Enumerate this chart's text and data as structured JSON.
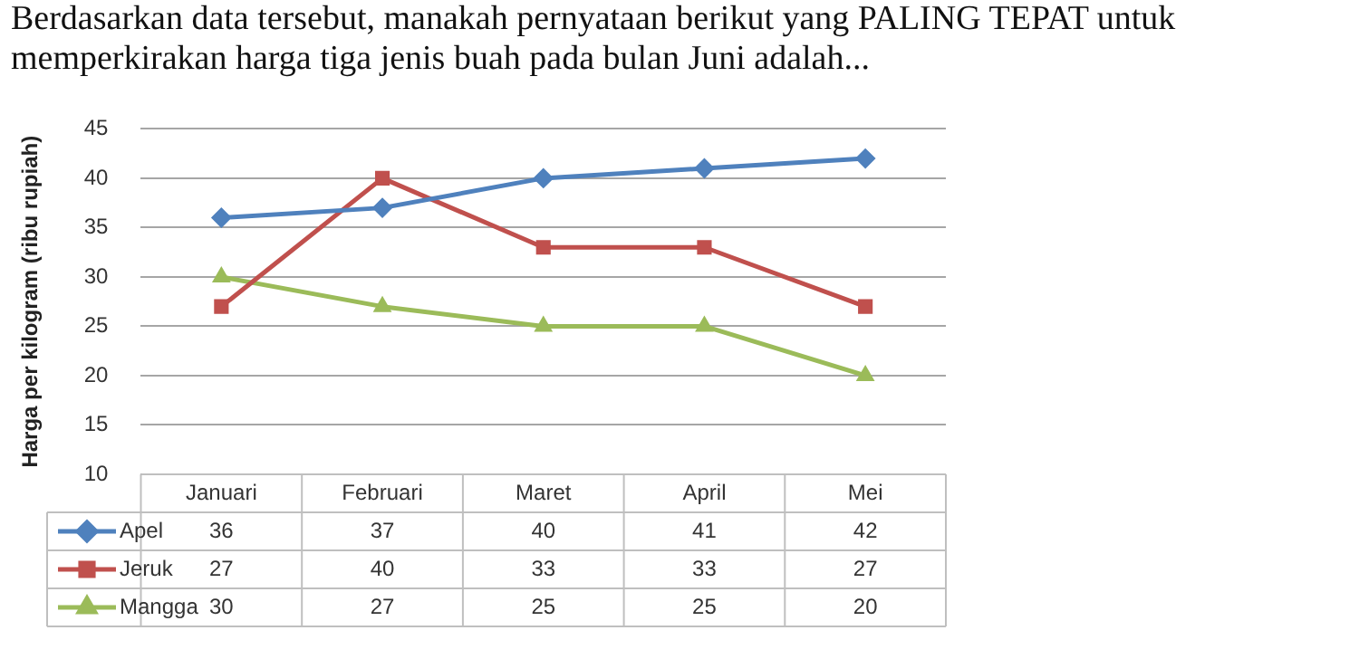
{
  "chart_data": {
    "type": "line",
    "title": "Berdasarkan data tersebut, manakah pernyataan berikut yang PALING TEPAT untuk memperkirakan harga tiga jenis buah pada bulan Juni adalah...",
    "ylabel": "Harga per kilogram (ribu rupiah)",
    "categories": [
      "Januari",
      "Februari",
      "Maret",
      "April",
      "Mei"
    ],
    "series": [
      {
        "name": "Apel",
        "color": "#4f81bd",
        "marker": "diamond",
        "values": [
          36,
          37,
          40,
          41,
          42
        ]
      },
      {
        "name": "Jeruk",
        "color": "#c0504d",
        "marker": "square",
        "values": [
          27,
          40,
          33,
          33,
          27
        ]
      },
      {
        "name": "Mangga",
        "color": "#9bbb59",
        "marker": "triangle",
        "values": [
          30,
          27,
          25,
          25,
          20
        ]
      }
    ],
    "ylim": [
      10,
      45
    ],
    "yticks": [
      10,
      15,
      20,
      25,
      30,
      35,
      40,
      45
    ],
    "grid": "y",
    "legend": "bottom left",
    "data_labels": true,
    "line_style": "solid"
  }
}
